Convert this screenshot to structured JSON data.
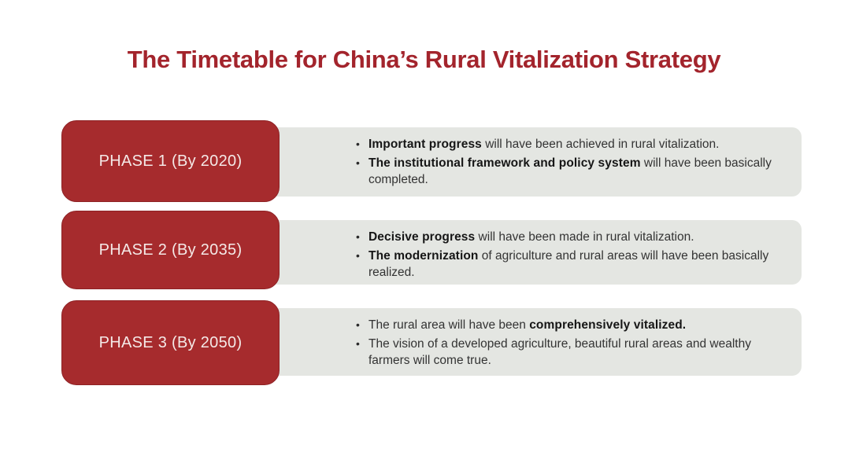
{
  "title": "The Timetable for China’s Rural Vitalization Strategy",
  "bullet_marker": "•",
  "colors": {
    "accent_red": "#a62b2d",
    "accent_red_dark": "#8e2225",
    "title_red": "#a3242c",
    "panel_gray": "#e4e6e2",
    "body_text": "#333333",
    "body_bold": "#161616",
    "label_text": "#f4e9e7"
  },
  "phases": [
    {
      "label": "PHASE 1 (By 2020)",
      "bullets": [
        {
          "lines": [
            [
              {
                "text": "Important progress",
                "bold": true
              },
              {
                "text": " will have been achieved in rural vitalization.",
                "bold": false
              }
            ]
          ]
        },
        {
          "lines": [
            [
              {
                "text": "The institutional framework and policy system",
                "bold": true
              },
              {
                "text": " will have been basically",
                "bold": false
              }
            ],
            [
              {
                "text": "completed.",
                "bold": false
              }
            ]
          ]
        }
      ]
    },
    {
      "label": "PHASE 2 (By 2035)",
      "bullets": [
        {
          "lines": [
            [
              {
                "text": "Decisive progress",
                "bold": true
              },
              {
                "text": " will have been made in rural vitalization.",
                "bold": false
              }
            ]
          ]
        },
        {
          "lines": [
            [
              {
                "text": "The modernization",
                "bold": true
              },
              {
                "text": " of agriculture and rural areas will have been basically",
                "bold": false
              }
            ],
            [
              {
                "text": "realized.",
                "bold": false
              }
            ]
          ]
        }
      ]
    },
    {
      "label": "PHASE 3 (By 2050)",
      "bullets": [
        {
          "lines": [
            [
              {
                "text": "The rural area will have been ",
                "bold": false
              },
              {
                "text": "comprehensively vitalized.",
                "bold": true
              }
            ]
          ]
        },
        {
          "lines": [
            [
              {
                "text": "The vision of a developed agriculture, beautiful rural areas and wealthy",
                "bold": false
              }
            ],
            [
              {
                "text": "farmers will come true.",
                "bold": false
              }
            ]
          ]
        }
      ]
    }
  ]
}
